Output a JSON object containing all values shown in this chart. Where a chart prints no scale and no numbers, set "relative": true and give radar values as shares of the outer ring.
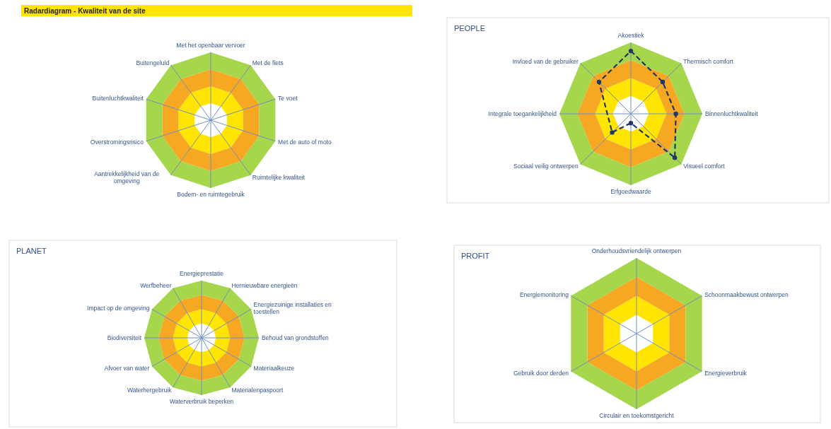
{
  "chart_data": [
    {
      "type": "radar",
      "title": "Radardiagram - Kwaliteit van de site",
      "relative": true,
      "categories": [
        "Met het openbaar vervoer",
        "Met de fiets",
        "Te voet",
        "Met de auto of moto",
        "Ruimtelijke kwaliteit",
        "Bodem- en ruimtegebruik",
        "Aantrekkelijkheid van de omgeving",
        "Overstromingsrisico",
        "Buitenluchtkwaliteit",
        "Buitengeluid"
      ]
    },
    {
      "type": "radar",
      "title": "PEOPLE",
      "relative": true,
      "marker": "circle",
      "line_style": "dashed",
      "categories": [
        "Akoestiek",
        "Thermisch comfort",
        "Binnenluchtkwaliteit",
        "Visueel comfort",
        "Erfgoedwaarde",
        "Sociaal veilig ontwerpen",
        "Integrale toegankelijkheid",
        "Invloed van de gebruiker"
      ],
      "series": [
        {
          "color": "#1f3864",
          "values": [
            0.88,
            0.63,
            0.63,
            0.87,
            0.13,
            0.37,
            null,
            0.63
          ]
        }
      ]
    },
    {
      "type": "radar",
      "title": "PLANET",
      "relative": true,
      "categories": [
        "Energieprestatie",
        "Hernieuwbare energieën",
        "Energiezuinige installaties en toestellen",
        "Behoud van grondstoffen",
        "Materiaalkeuze",
        "Materialenpaspoort",
        "Waterverbruik beperken",
        "Waterhergebruik",
        "Afvoer van water",
        "Biodiversiteit",
        "Impact op de omgeving",
        "Werfbeheer"
      ]
    },
    {
      "type": "radar",
      "title": "PROFIT",
      "relative": true,
      "categories": [
        "Onderhoudsvriendelijk ontwerpen",
        "Schoonmaakbewust ontwerpen",
        "Energieverbruik",
        "Circulair en toekomstgericht",
        "Gebruik door derden",
        "Energiemonitoring"
      ]
    }
  ]
}
